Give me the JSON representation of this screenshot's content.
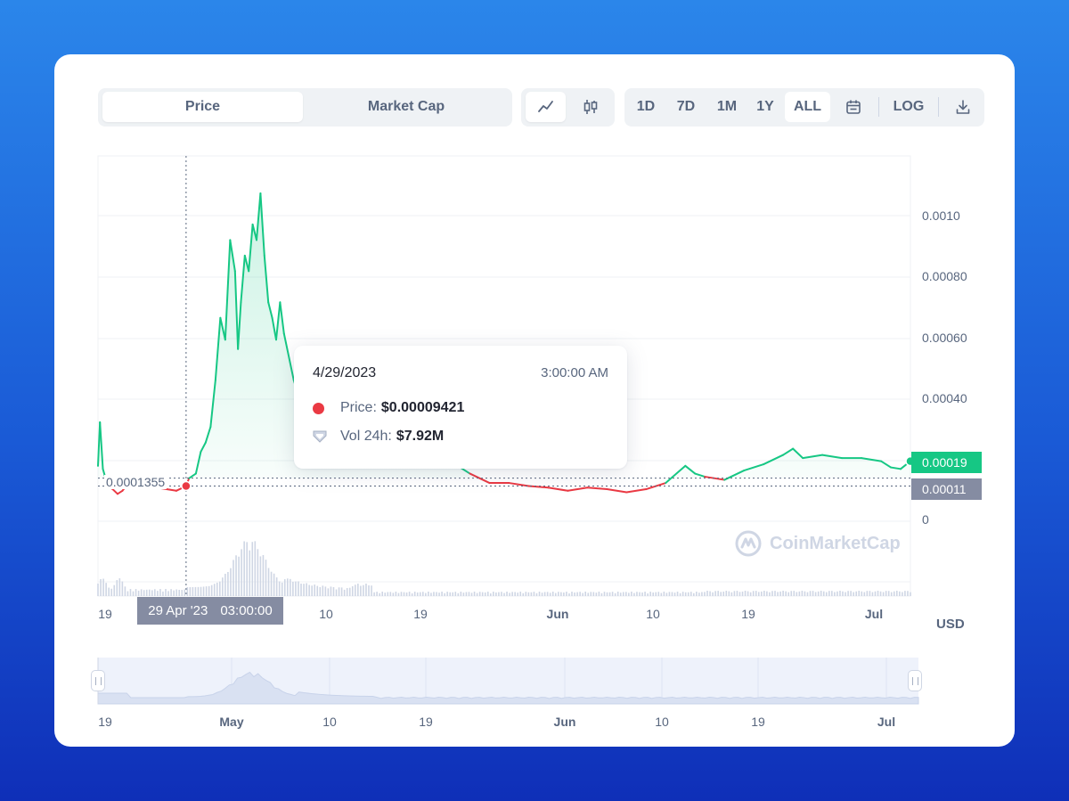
{
  "tabs": {
    "price": "Price",
    "market_cap": "Market Cap"
  },
  "chart_type_icons": [
    "line-chart-icon",
    "candlestick-icon"
  ],
  "ranges": [
    "1D",
    "7D",
    "1M",
    "1Y",
    "ALL"
  ],
  "active_range": "ALL",
  "log_label": "LOG",
  "icons": {
    "calendar": "calendar-icon",
    "download": "download-icon"
  },
  "tooltip": {
    "date": "4/29/2023",
    "time": "3:00:00 AM",
    "price_label": "Price:",
    "price_value": "$0.00009421",
    "vol_label": "Vol 24h:",
    "vol_value": "$7.92M"
  },
  "crosshair": {
    "date": "29 Apr '23",
    "time": "03:00:00"
  },
  "reference_line_label": "0.0001355",
  "current_price_badge": "0.00019",
  "crosshair_price_badge": "0.00011",
  "currency_label": "USD",
  "watermark": "CoinMarketCap",
  "colors": {
    "up": "#16c784",
    "down": "#ea3943",
    "grey_badge": "#858ca2",
    "volume": "#cfd6e4"
  },
  "chart_data": {
    "type": "line",
    "title": "",
    "ylabel": "",
    "y_ticks": [
      "0.0010",
      "0.00080",
      "0.00060",
      "0.00040",
      "0"
    ],
    "x_ticks": [
      {
        "label": "19",
        "bold": false
      },
      {
        "label": "10",
        "bold": false
      },
      {
        "label": "19",
        "bold": false
      },
      {
        "label": "Jun",
        "bold": true
      },
      {
        "label": "10",
        "bold": false
      },
      {
        "label": "19",
        "bold": false
      },
      {
        "label": "Jul",
        "bold": true
      }
    ],
    "navigator_ticks": [
      {
        "label": "19",
        "bold": false
      },
      {
        "label": "May",
        "bold": true
      },
      {
        "label": "10",
        "bold": false
      },
      {
        "label": "19",
        "bold": false
      },
      {
        "label": "Jun",
        "bold": true
      },
      {
        "label": "10",
        "bold": false
      },
      {
        "label": "19",
        "bold": false
      },
      {
        "label": "Jul",
        "bold": true
      }
    ],
    "ylim": [
      0,
      0.00105
    ],
    "reference_value": 0.0001355,
    "series": [
      {
        "values_day": [
          [
            0,
            0.000175
          ],
          [
            0.2,
            0.000315
          ],
          [
            0.5,
            0.000165
          ],
          [
            1,
            0.00011
          ],
          [
            1.5,
            0.0001
          ],
          [
            2,
            8.5e-05
          ],
          [
            2.5,
            9.5e-05
          ],
          [
            3,
            0.000115
          ],
          [
            4,
            0.00012
          ],
          [
            5,
            0.00011
          ],
          [
            6,
            0.000105
          ],
          [
            7,
            0.0001
          ],
          [
            8,
            9.5e-05
          ],
          [
            9,
            0.00011
          ],
          [
            9.3,
            0.000135
          ],
          [
            10,
            0.00015
          ],
          [
            10.5,
            0.00022
          ],
          [
            11,
            0.00025
          ],
          [
            11.5,
            0.0003
          ],
          [
            12,
            0.00045
          ],
          [
            12.5,
            0.00065
          ],
          [
            13,
            0.00058
          ],
          [
            13.5,
            0.0009
          ],
          [
            14,
            0.0008
          ],
          [
            14.3,
            0.00055
          ],
          [
            14.6,
            0.0007
          ],
          [
            15,
            0.00085
          ],
          [
            15.4,
            0.0008
          ],
          [
            15.8,
            0.00095
          ],
          [
            16.2,
            0.0009
          ],
          [
            16.6,
            0.00105
          ],
          [
            17,
            0.00085
          ],
          [
            17.4,
            0.0007
          ],
          [
            17.8,
            0.00065
          ],
          [
            18.2,
            0.00058
          ],
          [
            18.6,
            0.0007
          ],
          [
            19,
            0.0006
          ],
          [
            20,
            0.00045
          ],
          [
            21,
            0.00035
          ],
          [
            22,
            0.0003
          ],
          [
            23,
            0.00025
          ],
          [
            24,
            0.00023
          ],
          [
            25,
            0.0002
          ],
          [
            26,
            0.00021
          ],
          [
            28,
            0.00022
          ],
          [
            30,
            0.00021
          ],
          [
            32,
            0.0002
          ],
          [
            34,
            0.0002
          ],
          [
            36,
            0.00019
          ],
          [
            38,
            0.00015
          ],
          [
            40,
            0.00012
          ],
          [
            42,
            0.00012
          ],
          [
            44,
            0.00011
          ],
          [
            46,
            0.000105
          ],
          [
            48,
            9.5e-05
          ],
          [
            50,
            0.000105
          ],
          [
            52,
            0.0001
          ],
          [
            54,
            9e-05
          ],
          [
            56,
            0.0001
          ],
          [
            58,
            0.00012
          ],
          [
            60,
            0.000175
          ],
          [
            61,
            0.00015
          ],
          [
            62,
            0.00014
          ],
          [
            64,
            0.00013
          ],
          [
            66,
            0.00016
          ],
          [
            68,
            0.00018
          ],
          [
            70,
            0.00021
          ],
          [
            71,
            0.00023
          ],
          [
            72,
            0.0002
          ],
          [
            74,
            0.00021
          ],
          [
            76,
            0.0002
          ],
          [
            78,
            0.0002
          ],
          [
            80,
            0.00019
          ],
          [
            81,
            0.00017
          ],
          [
            82,
            0.000165
          ],
          [
            83,
            0.00019
          ]
        ]
      }
    ]
  }
}
